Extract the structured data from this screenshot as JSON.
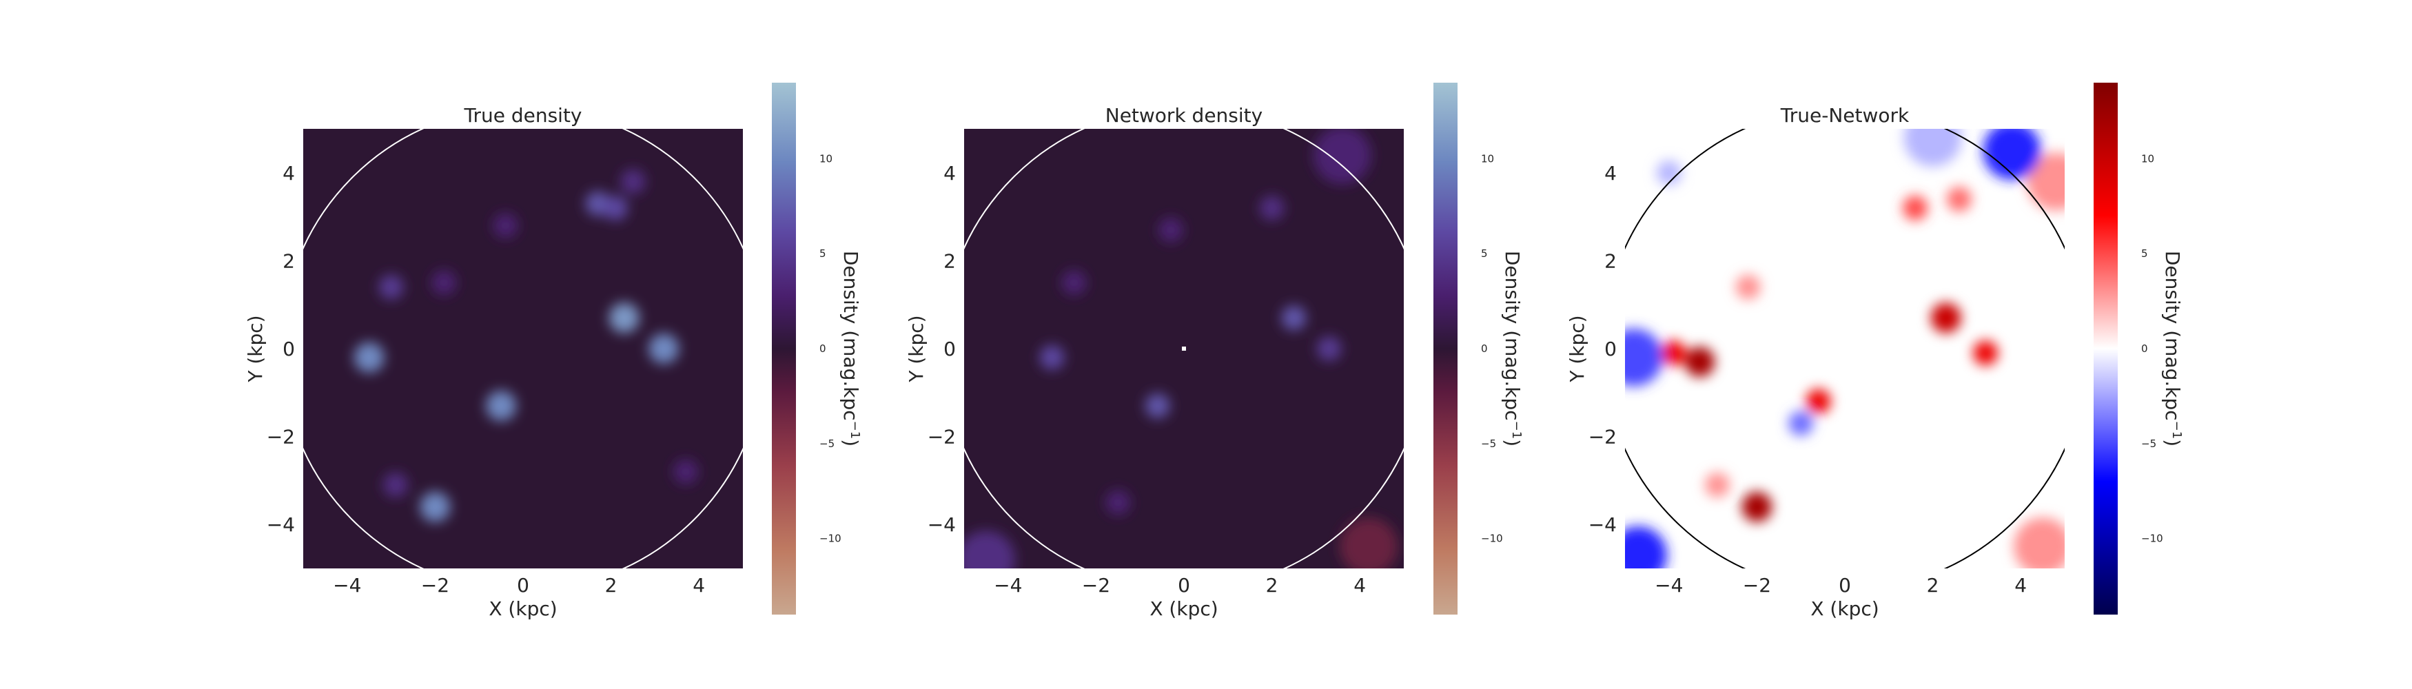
{
  "chart_data": [
    {
      "type": "heatmap",
      "title": "True density",
      "xlabel": "X (kpc)",
      "ylabel": "Y (kpc)",
      "xlim": [
        -5,
        5
      ],
      "ylim": [
        -5,
        5
      ],
      "xticks": [
        "−4",
        "−2",
        "0",
        "2",
        "4"
      ],
      "yticks": [
        "4",
        "2",
        "0",
        "−2",
        "−4"
      ],
      "colormap": "twilight",
      "colorbar": {
        "label": "Density (mag.kpc",
        "label_exponent": "−1",
        "label_close": ")",
        "range": [
          -14,
          14
        ],
        "ticks": [
          "10",
          "5",
          "0",
          "−5",
          "−10"
        ]
      },
      "circle_radius_kpc": 5.5,
      "circle_color": "#ffffff",
      "blobs": [
        {
          "x": -3.5,
          "y": -0.2,
          "value": 10
        },
        {
          "x": -3.0,
          "y": 1.4,
          "value": 5
        },
        {
          "x": -2.9,
          "y": -3.1,
          "value": 4
        },
        {
          "x": -2.0,
          "y": -3.6,
          "value": 10
        },
        {
          "x": -1.8,
          "y": 1.5,
          "value": 3
        },
        {
          "x": -0.5,
          "y": -1.3,
          "value": 10
        },
        {
          "x": -0.4,
          "y": 2.8,
          "value": 3
        },
        {
          "x": 1.7,
          "y": 3.3,
          "value": 7
        },
        {
          "x": 2.1,
          "y": 3.2,
          "value": 6
        },
        {
          "x": 2.5,
          "y": 3.8,
          "value": 4
        },
        {
          "x": 2.3,
          "y": 0.7,
          "value": 11
        },
        {
          "x": 3.2,
          "y": 0.0,
          "value": 10
        },
        {
          "x": 3.7,
          "y": -2.8,
          "value": 3
        }
      ]
    },
    {
      "type": "heatmap",
      "title": "Network density",
      "xlabel": "X (kpc)",
      "ylabel": "Y (kpc)",
      "xlim": [
        -5,
        5
      ],
      "ylim": [
        -5,
        5
      ],
      "xticks": [
        "−4",
        "−2",
        "0",
        "2",
        "4"
      ],
      "yticks": [
        "4",
        "2",
        "0",
        "−2",
        "−4"
      ],
      "colormap": "twilight",
      "colorbar": {
        "label": "Density (mag.kpc",
        "label_exponent": "−1",
        "label_close": ")",
        "range": [
          -14,
          14
        ],
        "ticks": [
          "10",
          "5",
          "0",
          "−5",
          "−10"
        ]
      },
      "circle_radius_kpc": 5.5,
      "circle_color": "#ffffff",
      "center_marker": {
        "x": 0,
        "y": 0
      },
      "blobs": [
        {
          "x": -3.0,
          "y": -0.2,
          "value": 6
        },
        {
          "x": -2.5,
          "y": 1.5,
          "value": 3
        },
        {
          "x": -0.6,
          "y": -1.3,
          "value": 7
        },
        {
          "x": -1.5,
          "y": -3.5,
          "value": 3
        },
        {
          "x": -0.3,
          "y": 2.7,
          "value": 3
        },
        {
          "x": 2.0,
          "y": 3.2,
          "value": 4
        },
        {
          "x": 2.5,
          "y": 0.7,
          "value": 7
        },
        {
          "x": 3.3,
          "y": 0.0,
          "value": 5
        },
        {
          "x": 3.6,
          "y": 4.4,
          "value": 3
        },
        {
          "x": -4.5,
          "y": -4.8,
          "value": 4
        },
        {
          "x": 4.2,
          "y": -4.5,
          "value": -3
        }
      ]
    },
    {
      "type": "heatmap",
      "title": "True-Network",
      "xlabel": "X (kpc)",
      "ylabel": "Y (kpc)",
      "xlim": [
        -5,
        5
      ],
      "ylim": [
        -5,
        5
      ],
      "xticks": [
        "−4",
        "−2",
        "0",
        "2",
        "4"
      ],
      "yticks": [
        "4",
        "2",
        "0",
        "−2",
        "−4"
      ],
      "colormap": "seismic",
      "colorbar": {
        "label": "Density (mag.kpc",
        "label_exponent": "−1",
        "label_close": ")",
        "range": [
          -14,
          14
        ],
        "ticks": [
          "10",
          "5",
          "0",
          "−5",
          "−10"
        ]
      },
      "circle_radius_kpc": 5.5,
      "circle_color": "#000000",
      "blobs": [
        {
          "x": -3.3,
          "y": -0.3,
          "value": 12
        },
        {
          "x": -3.9,
          "y": -0.1,
          "value": 8
        },
        {
          "x": -2.0,
          "y": -3.6,
          "value": 12
        },
        {
          "x": -0.6,
          "y": -1.2,
          "value": 8
        },
        {
          "x": -1.0,
          "y": -1.7,
          "value": -4
        },
        {
          "x": 2.3,
          "y": 0.7,
          "value": 10
        },
        {
          "x": 3.2,
          "y": -0.1,
          "value": 8
        },
        {
          "x": 1.6,
          "y": 3.2,
          "value": 5
        },
        {
          "x": 2.6,
          "y": 3.4,
          "value": 4
        },
        {
          "x": -2.2,
          "y": 1.4,
          "value": 3
        },
        {
          "x": -2.9,
          "y": -3.1,
          "value": 3
        },
        {
          "x": -4.8,
          "y": -0.2,
          "value": -5
        },
        {
          "x": -4.7,
          "y": -4.7,
          "value": -6
        },
        {
          "x": 4.5,
          "y": -4.5,
          "value": 3
        },
        {
          "x": 4.8,
          "y": 3.8,
          "value": 3
        },
        {
          "x": 3.8,
          "y": 4.5,
          "value": -6
        },
        {
          "x": 2.0,
          "y": 4.8,
          "value": -2
        },
        {
          "x": -4.0,
          "y": 4.0,
          "value": -2
        }
      ]
    }
  ]
}
